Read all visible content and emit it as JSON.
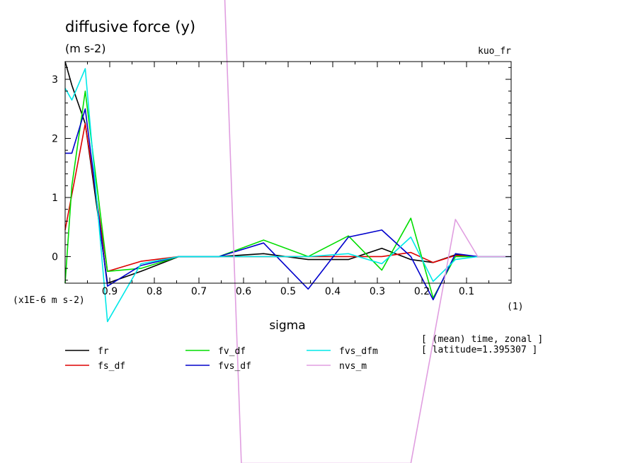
{
  "chart_data": {
    "type": "line",
    "title": "diffusive force (y)",
    "units": "(m s-2)",
    "experiment": "kuo_fr",
    "xlabel": "sigma",
    "x_unit": "(1)",
    "y_scale_label": "(x1E-6 m s-2)",
    "xlim": [
      1.0,
      0.0
    ],
    "ylim": [
      -0.45,
      3.3
    ],
    "x_tick_labels": [
      "0.9",
      "0.8",
      "0.7",
      "0.6",
      "0.5",
      "0.4",
      "0.3",
      "0.2",
      "0.1"
    ],
    "x_ticks": [
      0.9,
      0.8,
      0.7,
      0.6,
      0.5,
      0.4,
      0.3,
      0.2,
      0.1
    ],
    "y_tick_labels": [
      "0",
      "1",
      "2",
      "3"
    ],
    "y_ticks": [
      0,
      1,
      2,
      3
    ],
    "info_lines": [
      "[ (mean) time, zonal ]",
      "[ latitude=1.395307 ]"
    ],
    "x": [
      1.0,
      0.985,
      0.955,
      0.905,
      0.83,
      0.745,
      0.655,
      0.555,
      0.455,
      0.365,
      0.29,
      0.225,
      0.175,
      0.125,
      0.075,
      0.025,
      0.0
    ],
    "series": [
      {
        "name": "fr",
        "color": "#000000",
        "values": [
          3.3,
          2.9,
          2.25,
          -0.45,
          -0.25,
          0.0,
          0.0,
          0.05,
          -0.05,
          -0.05,
          0.14,
          -0.05,
          -0.1,
          0.03,
          0.0,
          0.0,
          0.0
        ]
      },
      {
        "name": "fs_df",
        "color": "#dd0000",
        "values": [
          0.45,
          1.05,
          2.25,
          -0.25,
          -0.08,
          0.0,
          0.0,
          0.0,
          0.0,
          0.0,
          0.0,
          0.07,
          -0.1,
          0.02,
          0.0,
          0.0,
          0.0
        ]
      },
      {
        "name": "fv_df",
        "color": "#00dd00",
        "values": [
          -0.45,
          1.2,
          2.8,
          -0.25,
          -0.2,
          0.0,
          0.0,
          0.28,
          0.0,
          0.35,
          -0.23,
          0.65,
          -0.7,
          0.0,
          0.0,
          0.0,
          0.0
        ]
      },
      {
        "name": "fvs_df",
        "color": "#0000cc",
        "values": [
          1.75,
          1.75,
          2.5,
          -0.5,
          -0.15,
          0.0,
          0.0,
          0.23,
          -0.55,
          0.33,
          0.45,
          0.0,
          -0.73,
          0.05,
          0.0,
          0.0,
          0.0
        ]
      },
      {
        "name": "fvs_dfm",
        "color": "#00e8e8",
        "values": [
          2.85,
          2.65,
          3.18,
          -1.1,
          -0.12,
          0.0,
          0.0,
          0.0,
          0.0,
          0.05,
          -0.12,
          0.33,
          -0.42,
          -0.05,
          0.0,
          0.0,
          0.0
        ]
      },
      {
        "name": "nvs_m",
        "color": "#e09ee0",
        "x": [
          0.645,
          0.605,
          0.225,
          0.125,
          0.075,
          0.0
        ],
        "values": [
          5.0,
          -3.5,
          -3.5,
          0.63,
          0.0,
          0.0
        ]
      }
    ]
  }
}
